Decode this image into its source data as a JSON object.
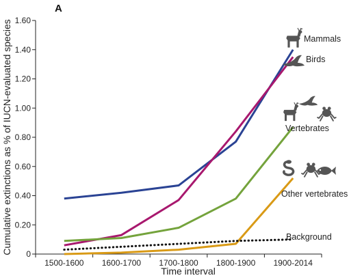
{
  "chart_data": {
    "type": "line",
    "panel_label": "A",
    "xlabel": "Time interval",
    "ylabel": "Cumulative extinctions as % of IUCN-evaluated species",
    "categories": [
      "1500-1600",
      "1600-1700",
      "1700-1800",
      "1800-1900",
      "1900-2014"
    ],
    "ylim": [
      0,
      1.6
    ],
    "yticks": [
      "0",
      "0.20",
      "0.40",
      "0.60",
      "0.80",
      "1.00",
      "1.20",
      "1.40",
      "1.60"
    ],
    "grid": false,
    "series": [
      {
        "name": "Mammals",
        "color": "#2a4394",
        "style": "solid",
        "values": [
          0.38,
          0.42,
          0.47,
          0.77,
          1.4
        ]
      },
      {
        "name": "Birds",
        "color": "#a8186e",
        "style": "solid",
        "values": [
          0.06,
          0.13,
          0.37,
          0.84,
          1.35
        ]
      },
      {
        "name": "Vertebrates",
        "color": "#74a33c",
        "style": "solid",
        "values": [
          0.09,
          0.11,
          0.18,
          0.38,
          0.87
        ]
      },
      {
        "name": "Other vertebrates",
        "color": "#d99a16",
        "style": "solid",
        "values": [
          0.0,
          0.01,
          0.03,
          0.07,
          0.52
        ]
      },
      {
        "name": "Background",
        "color": "#111111",
        "style": "dotted",
        "values": [
          0.03,
          0.05,
          0.07,
          0.09,
          0.1
        ]
      }
    ],
    "icons": {
      "Mammals": [
        "deer-icon"
      ],
      "Birds": [
        "bird-icon"
      ],
      "Vertebrates": [
        "deer-icon",
        "bird-icon",
        "frog-icon"
      ],
      "Other vertebrates": [
        "snake-icon",
        "frog-icon",
        "fish-icon"
      ]
    }
  }
}
